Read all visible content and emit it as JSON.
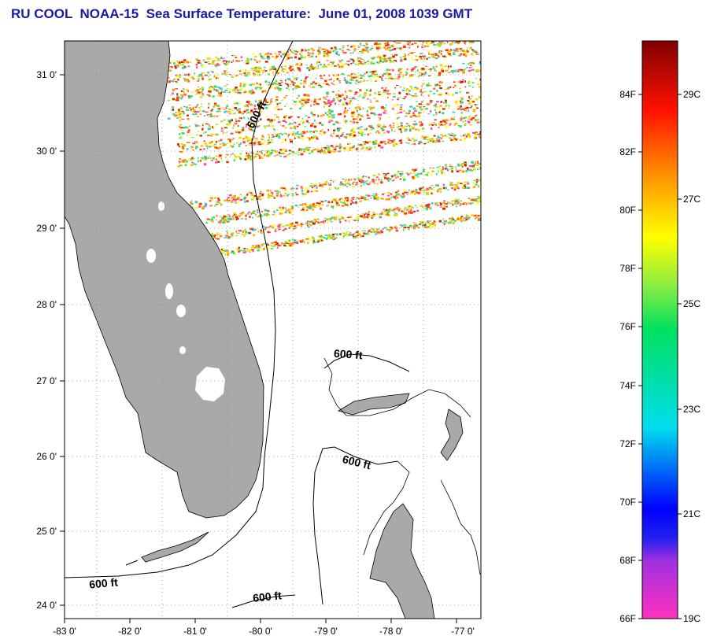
{
  "title": "RU COOL  NOAA-15  Sea Surface Temperature:  June 01, 2008 1039 GMT",
  "map": {
    "lon_ticks": [
      "-83 0'",
      "-82 0'",
      "-81 0'",
      "-80 0'",
      "-79 0'",
      "-78 0'",
      "-77 0'"
    ],
    "lat_ticks": [
      "31 0'",
      "30 0'",
      "29 0'",
      "28 0'",
      "27 0'",
      "26 0'",
      "25 0'",
      "24 0'"
    ],
    "contour_labels": [
      "600 ft",
      "600 ft",
      "600 ft",
      "600 ft",
      "600 ft"
    ],
    "colors": {
      "land": "#a9a9a9",
      "water": "#ffffff",
      "contour": "#000000"
    }
  },
  "colorbar": {
    "fahrenheit_labels": [
      "84F",
      "82F",
      "80F",
      "78F",
      "76F",
      "74F",
      "72F",
      "70F",
      "68F",
      "66F"
    ],
    "celsius_labels": [
      "29C",
      "27C",
      "25C",
      "23C",
      "21C",
      "19C"
    ]
  }
}
